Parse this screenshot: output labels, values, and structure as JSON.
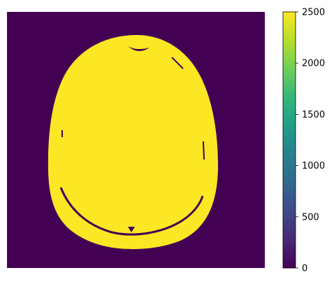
{
  "chart_data": {
    "type": "heatmap",
    "title": "",
    "xlabel": "",
    "ylabel": "",
    "axes_visible": false,
    "image_description_values": {
      "background_value": 0,
      "object_value": 2500
    },
    "colormap": "viridis",
    "colorbar": {
      "range": [
        0,
        2500
      ],
      "ticks": [
        0,
        500,
        1000,
        1500,
        2000,
        2500
      ],
      "tick_labels": [
        "0",
        "500",
        "1000",
        "1500",
        "2000",
        "2500"
      ]
    },
    "colors": {
      "low": "#440154",
      "high": "#fde725",
      "viridis_stops": [
        "#440154",
        "#482878",
        "#3e4a89",
        "#31688e",
        "#26828e",
        "#1f9e89",
        "#35b779",
        "#6ece58",
        "#b5de2b",
        "#fde725"
      ]
    }
  }
}
